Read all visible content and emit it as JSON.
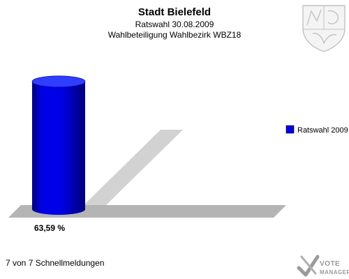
{
  "header": {
    "title": "Stadt Bielefeld",
    "subtitle1": "Ratswahl 30.08.2009",
    "subtitle2": "Wahlbeteiligung Wahlbezirk WBZ18"
  },
  "footer": {
    "status": "7 von 7 Schnellmeldungen"
  },
  "branding": {
    "line1": "VOTE",
    "line2": "MANAGER"
  },
  "colors": {
    "bar": "#0000e6",
    "bar_dark": "#00007a",
    "bar_top": "#2f3dff",
    "floor": "#b4b4b4",
    "shadow": "#d2d2d2"
  },
  "chart_data": {
    "type": "bar",
    "categories": [
      "Ratswahl 2009"
    ],
    "series": [
      {
        "name": "Ratswahl 2009",
        "values": [
          63.59
        ]
      }
    ],
    "data_labels": [
      "63,59 %"
    ],
    "ylim": [
      0,
      100
    ],
    "legend": "right",
    "grid": false
  }
}
